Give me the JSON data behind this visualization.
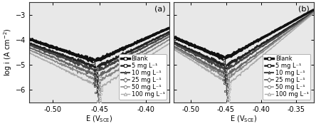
{
  "panel_a": {
    "label": "(a)",
    "xlim": [
      -0.525,
      -0.375
    ],
    "xticks": [
      -0.5,
      -0.45,
      -0.4
    ],
    "ylim": [
      -6.5,
      -2.5
    ],
    "yticks": [
      -6,
      -5,
      -4,
      -3
    ],
    "corr_potential": -0.455,
    "series": [
      {
        "name": "Blank",
        "color": "#111111",
        "lw": 2.5,
        "marker": "s",
        "ba": 0.06,
        "bc": 0.08,
        "icorr": -4.85,
        "xoff": 0.0
      },
      {
        "name": "5 mg L⁻¹",
        "color": "#222222",
        "lw": 1.8,
        "marker": "s",
        "ba": 0.055,
        "bc": 0.075,
        "icorr": -5.1,
        "xoff": 0.002
      },
      {
        "name": "10 mg L⁻¹",
        "color": "#444444",
        "lw": 1.5,
        "marker": "*",
        "ba": 0.052,
        "bc": 0.07,
        "icorr": -5.25,
        "xoff": 0.003
      },
      {
        "name": "25 mg L⁻¹",
        "color": "#666666",
        "lw": 1.3,
        "marker": "D",
        "ba": 0.048,
        "bc": 0.065,
        "icorr": -5.45,
        "xoff": 0.004
      },
      {
        "name": "50 mg L⁻¹",
        "color": "#888888",
        "lw": 1.1,
        "marker": "o",
        "ba": 0.045,
        "bc": 0.06,
        "icorr": -5.65,
        "xoff": 0.005
      },
      {
        "name": "100 mg L⁻¹",
        "color": "#aaaaaa",
        "lw": 1.0,
        "marker": "^",
        "ba": 0.042,
        "bc": 0.055,
        "icorr": -5.9,
        "xoff": 0.006
      }
    ]
  },
  "panel_b": {
    "label": "(b)",
    "xlim": [
      -0.525,
      -0.325
    ],
    "xticks": [
      -0.5,
      -0.45,
      -0.4,
      -0.35
    ],
    "ylim": [
      -6.5,
      -2.5
    ],
    "yticks": [
      -6,
      -5,
      -4,
      -3
    ],
    "corr_potential": -0.452,
    "series": [
      {
        "name": "Blank",
        "color": "#111111",
        "lw": 2.5,
        "marker": "s",
        "ba": 0.065,
        "bc": 0.085,
        "icorr": -4.75,
        "xoff": 0.0
      },
      {
        "name": "5 mg L⁻¹",
        "color": "#222222",
        "lw": 1.8,
        "marker": "s",
        "ba": 0.058,
        "bc": 0.078,
        "icorr": -5.05,
        "xoff": 0.002
      },
      {
        "name": "10 mg L⁻¹",
        "color": "#444444",
        "lw": 1.5,
        "marker": "*",
        "ba": 0.054,
        "bc": 0.072,
        "icorr": -5.2,
        "xoff": 0.003
      },
      {
        "name": "25 mg L⁻¹",
        "color": "#666666",
        "lw": 1.3,
        "marker": "D",
        "ba": 0.05,
        "bc": 0.067,
        "icorr": -5.4,
        "xoff": 0.004
      },
      {
        "name": "50 mg L⁻¹",
        "color": "#888888",
        "lw": 1.1,
        "marker": "o",
        "ba": 0.046,
        "bc": 0.062,
        "icorr": -5.55,
        "xoff": 0.005
      },
      {
        "name": "100 mg L⁻¹",
        "color": "#aaaaaa",
        "lw": 1.0,
        "marker": "^",
        "ba": 0.043,
        "bc": 0.057,
        "icorr": -5.75,
        "xoff": 0.006
      }
    ]
  },
  "ylabel": "log i (A cm⁻²)",
  "background": "#e8e8e8",
  "fontsize": 7.0
}
